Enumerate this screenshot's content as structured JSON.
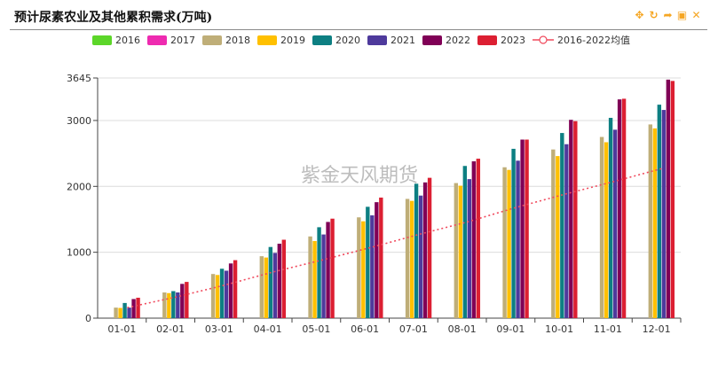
{
  "header": {
    "title": "预计尿素农业及其他累积需求(万吨)"
  },
  "toolbox": [
    {
      "icon": "move-icon",
      "glyph": "✥"
    },
    {
      "icon": "refresh-icon",
      "glyph": "↻"
    },
    {
      "icon": "share-icon",
      "glyph": "➦"
    },
    {
      "icon": "save-image-icon",
      "glyph": "▣"
    },
    {
      "icon": "close-icon",
      "glyph": "✕"
    }
  ],
  "watermark": "紫金天风期货",
  "chart_data": {
    "type": "bar",
    "title": "预计尿素农业及其他累积需求(万吨)",
    "categories": [
      "01-01",
      "02-01",
      "03-01",
      "04-01",
      "05-01",
      "06-01",
      "07-01",
      "08-01",
      "09-01",
      "10-01",
      "11-01",
      "12-01"
    ],
    "ylim": [
      0,
      3645
    ],
    "yticks": [
      0,
      1000,
      2000,
      3000,
      3645
    ],
    "grid": true,
    "legend_position": "top",
    "series": [
      {
        "name": "2016",
        "color": "#5cd629",
        "values": [
          null,
          null,
          null,
          null,
          null,
          null,
          null,
          null,
          null,
          null,
          null,
          null
        ]
      },
      {
        "name": "2017",
        "color": "#ee2bb0",
        "values": [
          null,
          null,
          null,
          null,
          null,
          null,
          null,
          null,
          null,
          null,
          null,
          null
        ]
      },
      {
        "name": "2018",
        "color": "#bfae78",
        "values": [
          160,
          390,
          670,
          940,
          1240,
          1530,
          1810,
          2050,
          2290,
          2560,
          2750,
          2940
        ]
      },
      {
        "name": "2019",
        "color": "#ffc000",
        "values": [
          155,
          380,
          655,
          920,
          1170,
          1470,
          1780,
          2010,
          2250,
          2460,
          2670,
          2880
        ]
      },
      {
        "name": "2020",
        "color": "#0d7f82",
        "values": [
          230,
          410,
          750,
          1080,
          1380,
          1690,
          2040,
          2310,
          2570,
          2810,
          3040,
          3240
        ]
      },
      {
        "name": "2021",
        "color": "#4e3a9c",
        "values": [
          160,
          390,
          720,
          990,
          1270,
          1560,
          1860,
          2110,
          2390,
          2640,
          2860,
          3160
        ]
      },
      {
        "name": "2022",
        "color": "#800056",
        "values": [
          290,
          520,
          830,
          1130,
          1460,
          1760,
          2060,
          2380,
          2710,
          3010,
          3320,
          3620
        ]
      },
      {
        "name": "2023",
        "color": "#dc1f32",
        "values": [
          310,
          550,
          880,
          1190,
          1510,
          1830,
          2130,
          2420,
          2710,
          2990,
          3330,
          3600
        ]
      }
    ],
    "average": {
      "name": "2016-2022均值",
      "color": "#f0495c",
      "values": [
        160,
        320,
        500,
        700,
        880,
        1070,
        1270,
        1460,
        1680,
        1880,
        2070,
        2270
      ]
    }
  }
}
